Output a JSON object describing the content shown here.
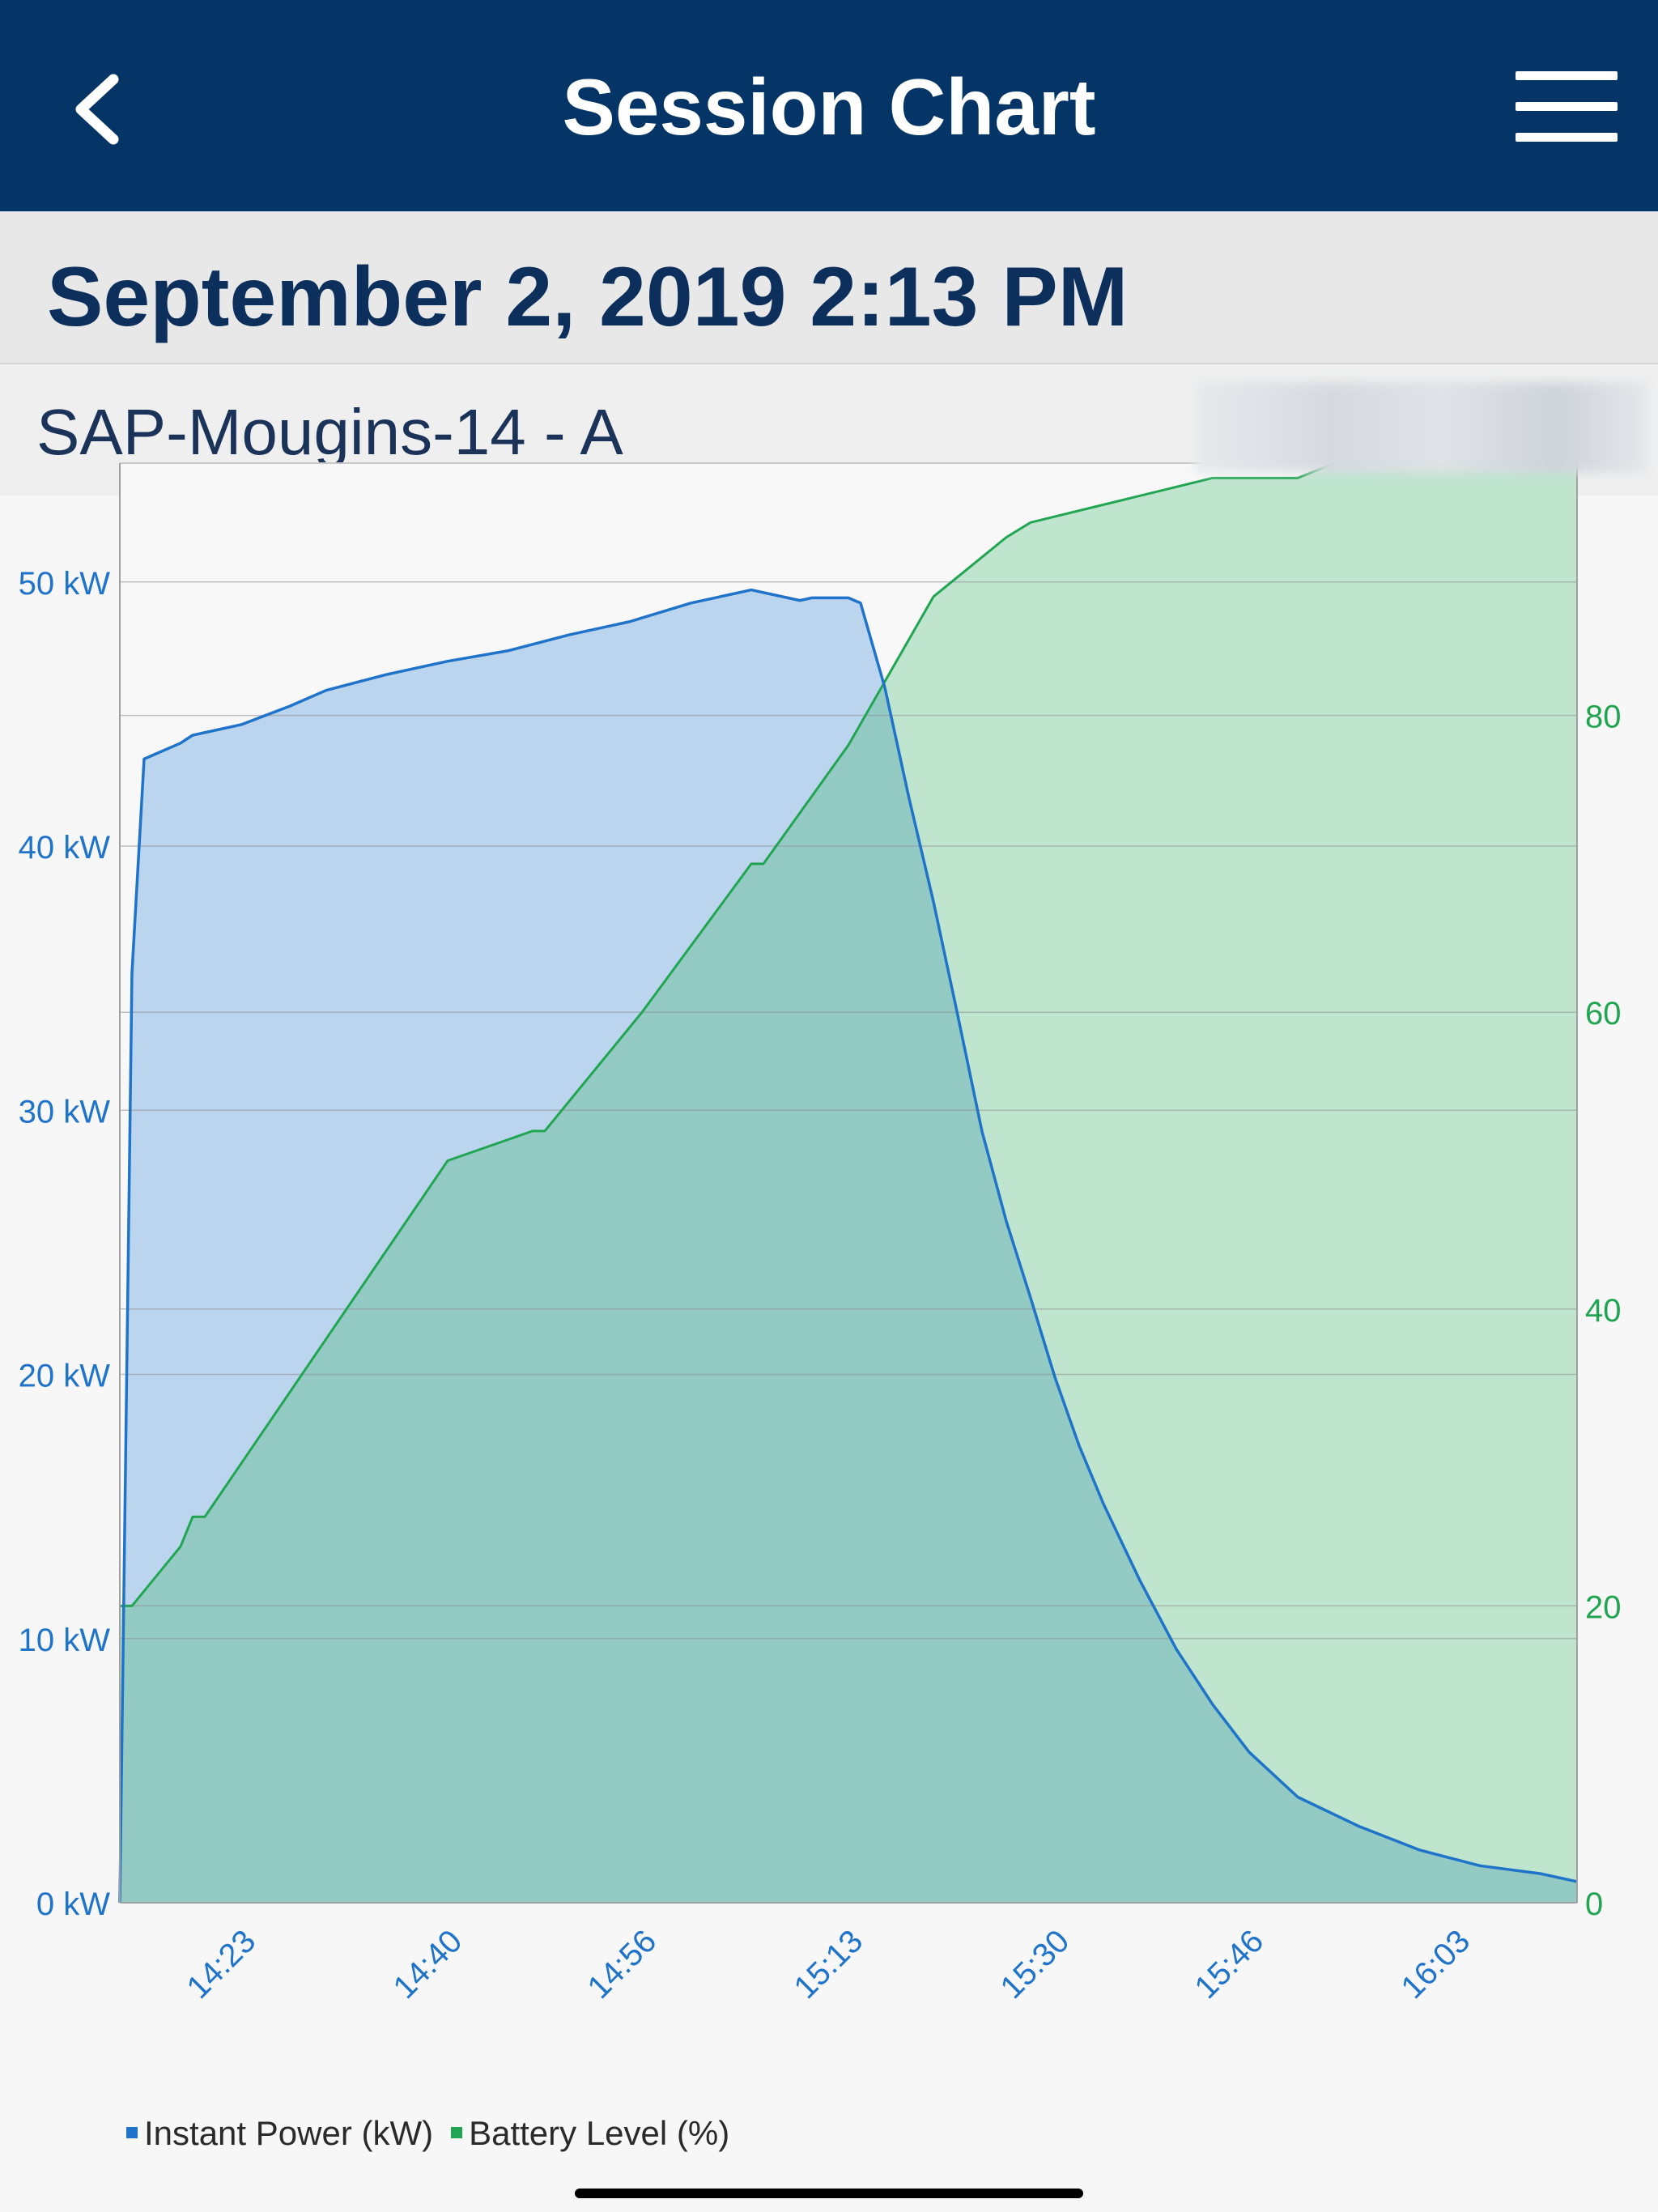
{
  "header": {
    "title": "Session Chart",
    "back_icon": "chevron-left-icon",
    "menu_icon": "hamburger-menu-icon"
  },
  "session": {
    "date": "September 2, 2019 2:13 PM",
    "station": "SAP-Mougins-14 - A"
  },
  "colors": {
    "navbar": "#053566",
    "power": "#1f73c9",
    "power_fill": "#bcd5ee",
    "battery": "#22a552",
    "battery_fill": "#bfe5cf",
    "overlap_fill": "#93cac3"
  },
  "chart_data": {
    "type": "area",
    "x_unit": "time (HH:MM)",
    "x_ticks": [
      "14:23",
      "14:40",
      "14:56",
      "15:13",
      "15:30",
      "15:46",
      "16:03"
    ],
    "x_range": [
      "14:13",
      "16:13"
    ],
    "y_left": {
      "ticks": [
        "0 kW",
        "10 kW",
        "20 kW",
        "30 kW",
        "40 kW",
        "50 kW"
      ],
      "range": [
        0,
        54.5
      ]
    },
    "y_right": {
      "ticks": [
        "0",
        "20",
        "40",
        "60",
        "80"
      ],
      "range": [
        0,
        97
      ]
    },
    "grid": true,
    "legend_position": "bottom-left",
    "series": [
      {
        "name": "Instant Power (kW)",
        "axis": "left",
        "x": [
          "14:13",
          "14:14",
          "14:15",
          "14:18",
          "14:19",
          "14:23",
          "14:27",
          "14:30",
          "14:35",
          "14:40",
          "14:45",
          "14:50",
          "14:55",
          "15:00",
          "15:05",
          "15:09",
          "15:10",
          "15:13",
          "15:14",
          "15:16",
          "15:18",
          "15:20",
          "15:22",
          "15:24",
          "15:26",
          "15:28",
          "15:30",
          "15:32",
          "15:34",
          "15:37",
          "15:40",
          "15:43",
          "15:46",
          "15:50",
          "15:55",
          "16:00",
          "16:05",
          "16:10",
          "16:13"
        ],
        "values": [
          0,
          35.2,
          43.3,
          43.9,
          44.2,
          44.6,
          45.3,
          45.9,
          46.5,
          47.0,
          47.4,
          48.0,
          48.5,
          49.2,
          49.7,
          49.3,
          49.4,
          49.4,
          49.2,
          46.0,
          41.8,
          37.9,
          33.6,
          29.2,
          25.8,
          22.9,
          19.9,
          17.3,
          15.1,
          12.2,
          9.6,
          7.5,
          5.7,
          4.0,
          2.9,
          2.0,
          1.4,
          1.1,
          0.8
        ]
      },
      {
        "name": "Battery Level (%)",
        "axis": "right",
        "x": [
          "14:13",
          "14:14",
          "14:18",
          "14:19",
          "14:20",
          "14:30",
          "14:40",
          "14:47",
          "14:48",
          "14:56",
          "15:05",
          "15:06",
          "15:13",
          "15:20",
          "15:23",
          "15:26",
          "15:28",
          "15:33",
          "15:38",
          "15:43",
          "15:50",
          "15:53",
          "16:00",
          "16:13"
        ],
        "values": [
          20,
          20,
          24,
          26,
          26,
          38,
          50,
          52,
          52,
          60,
          70,
          70,
          78,
          88,
          90,
          92,
          93,
          94,
          95,
          96,
          96,
          97,
          97,
          97
        ]
      }
    ]
  }
}
